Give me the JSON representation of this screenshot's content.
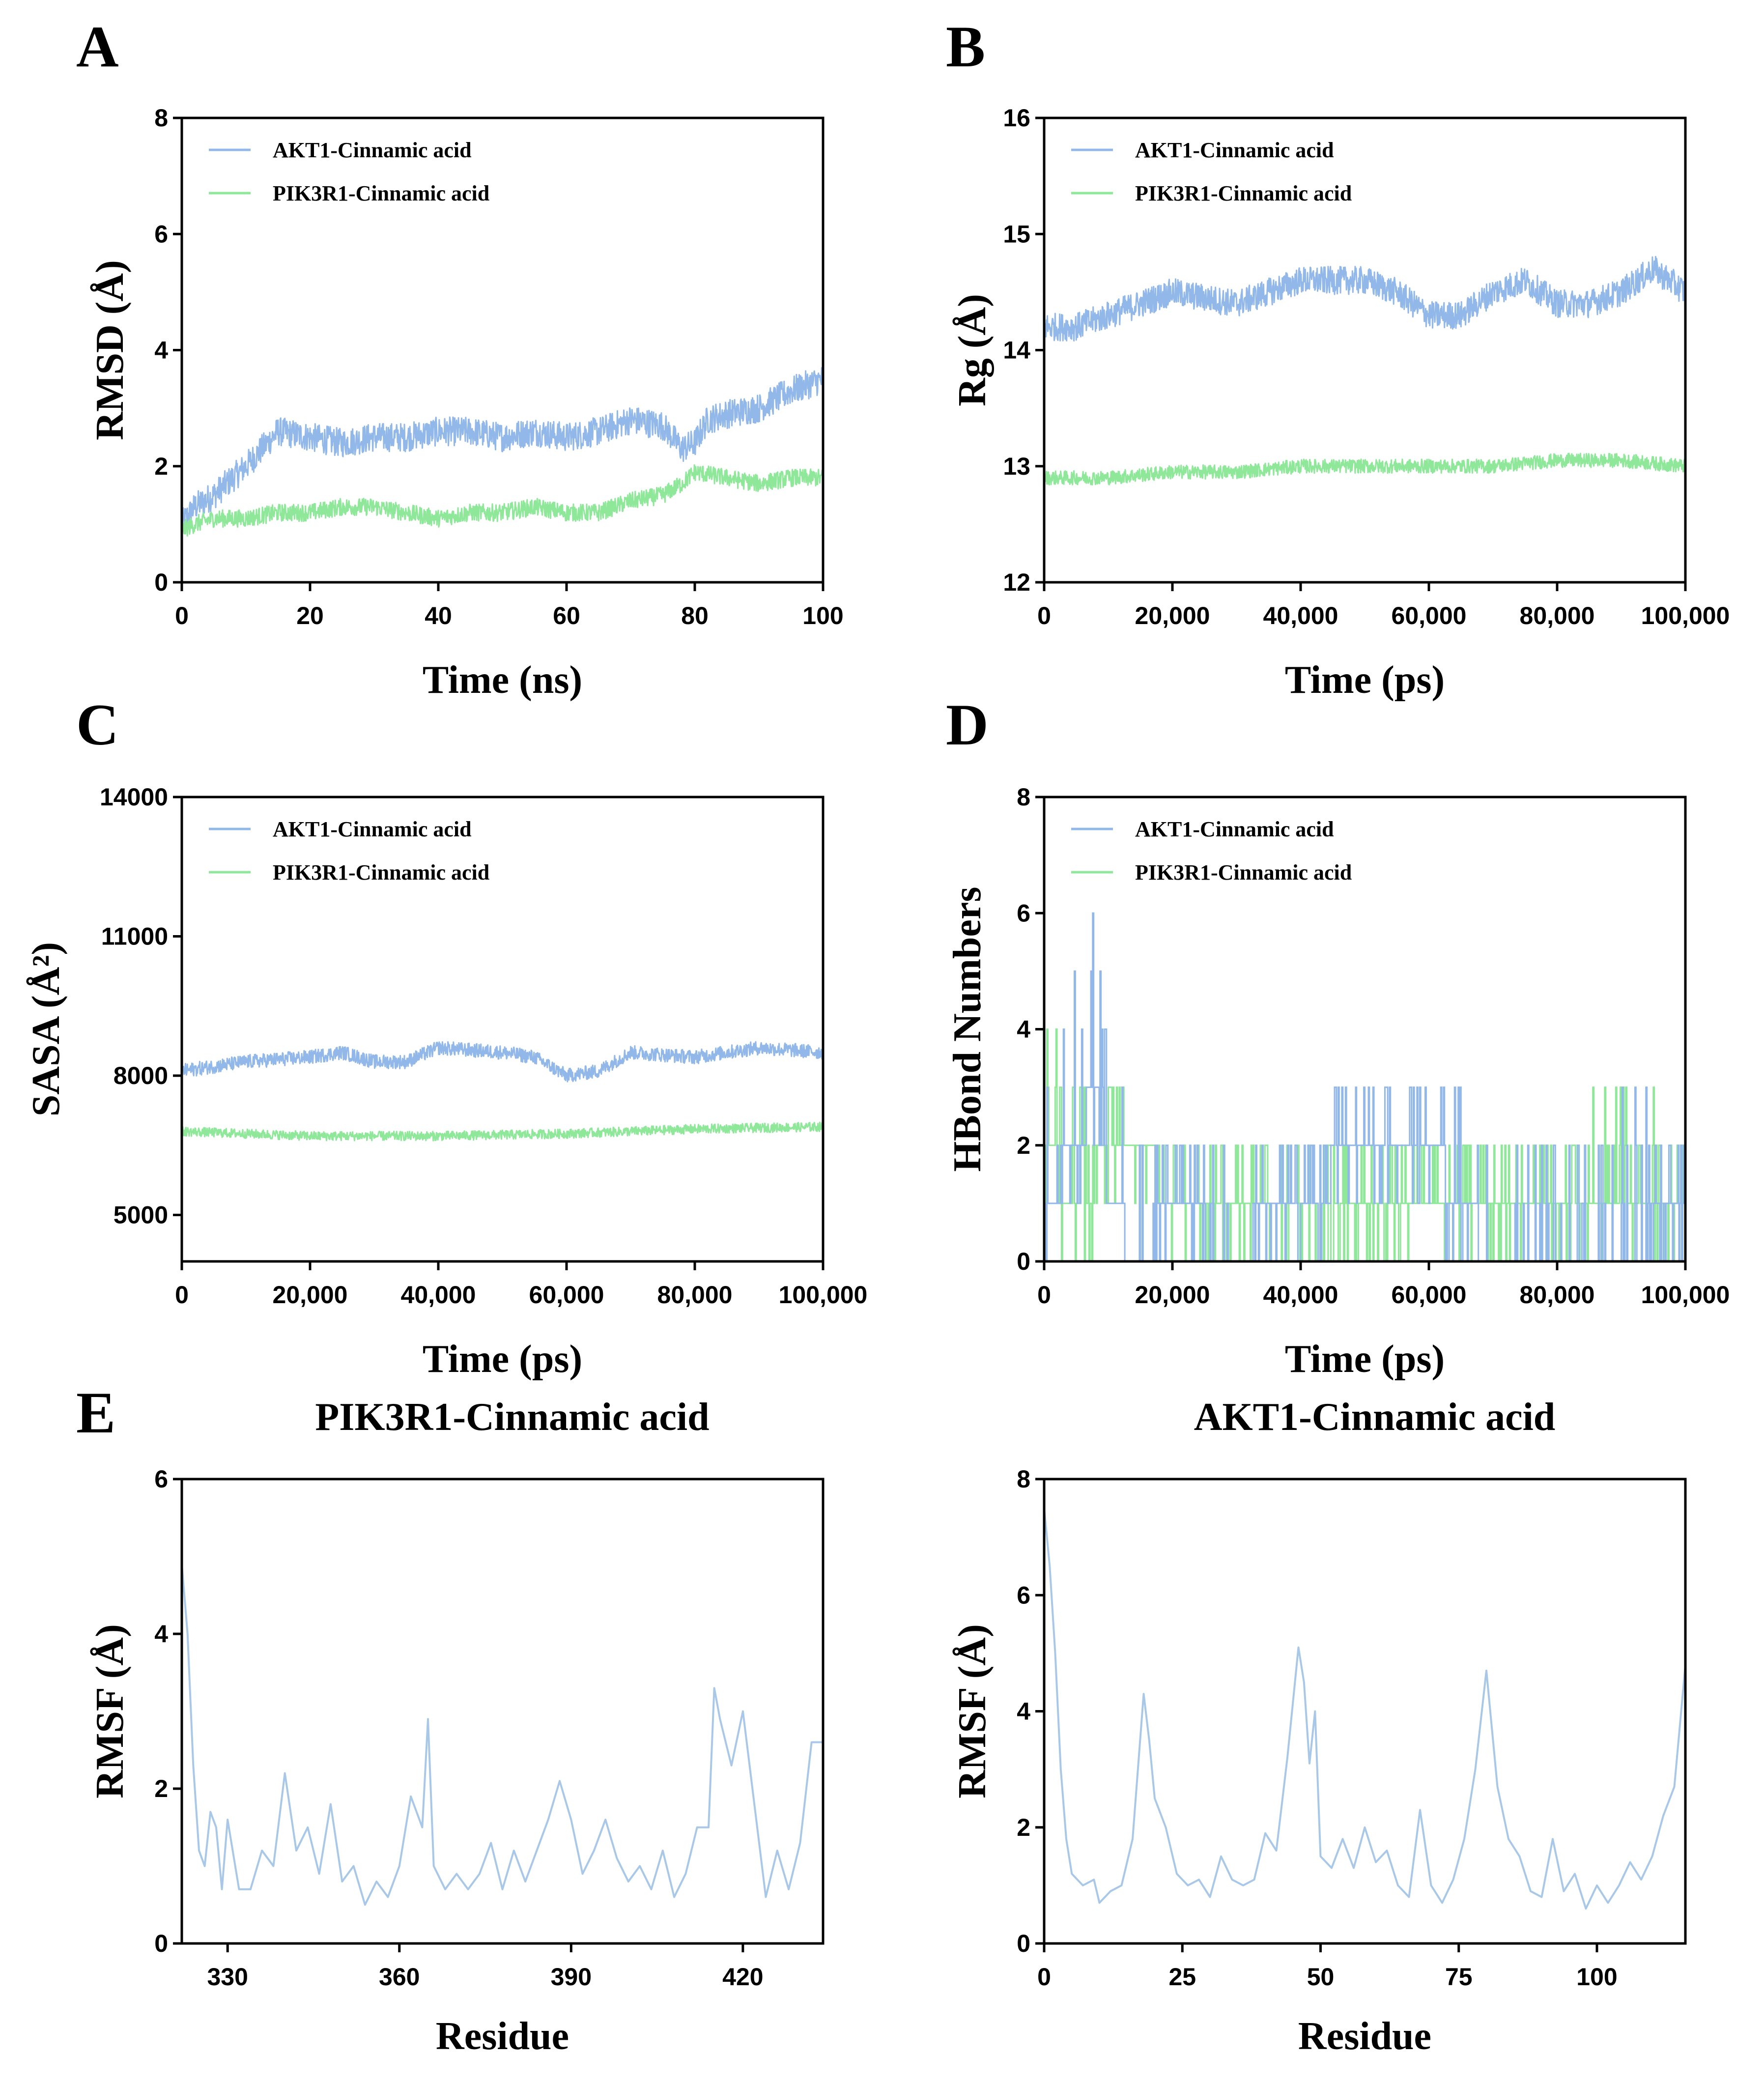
{
  "figure": {
    "colors": {
      "akt1": "#92b8ea",
      "pik3r1": "#8fe89a",
      "rmsf": "#a9c8e8"
    }
  },
  "chart_data": [
    {
      "id": "A",
      "panel_label": "A",
      "type": "line",
      "title": "",
      "xlabel": "Time (ns)",
      "ylabel": "RMSD (Å)",
      "xlim": [
        0,
        100
      ],
      "ylim": [
        0,
        8
      ],
      "xticks": [
        0,
        20,
        40,
        60,
        80,
        100
      ],
      "xtick_labels": [
        "0",
        "20",
        "40",
        "60",
        "80",
        "100"
      ],
      "yticks": [
        0,
        2,
        4,
        6,
        8
      ],
      "ytick_labels": [
        "0",
        "2",
        "4",
        "6",
        "8"
      ],
      "legend": [
        "AKT1-Cinnamic acid",
        "PIK3R1-Cinnamic acid"
      ],
      "legend_position": "top-left",
      "series": [
        {
          "name": "AKT1-Cinnamic acid",
          "color": "#92b8ea",
          "noise": 0.25,
          "x": [
            0,
            2,
            5,
            10,
            15,
            20,
            25,
            30,
            35,
            40,
            45,
            50,
            55,
            60,
            65,
            70,
            75,
            78,
            80,
            82,
            85,
            90,
            95,
            100
          ],
          "values": [
            1.0,
            1.3,
            1.5,
            2.0,
            2.6,
            2.5,
            2.4,
            2.5,
            2.5,
            2.6,
            2.6,
            2.5,
            2.6,
            2.5,
            2.6,
            2.8,
            2.7,
            2.3,
            2.4,
            2.8,
            2.9,
            3.0,
            3.3,
            3.5
          ]
        },
        {
          "name": "PIK3R1-Cinnamic acid",
          "color": "#8fe89a",
          "noise": 0.15,
          "x": [
            0,
            2,
            5,
            10,
            15,
            20,
            25,
            30,
            35,
            40,
            45,
            50,
            55,
            60,
            65,
            70,
            75,
            78,
            80,
            85,
            90,
            95,
            100
          ],
          "values": [
            0.9,
            1.0,
            1.1,
            1.1,
            1.2,
            1.2,
            1.3,
            1.3,
            1.2,
            1.1,
            1.2,
            1.2,
            1.3,
            1.2,
            1.2,
            1.4,
            1.5,
            1.7,
            1.9,
            1.8,
            1.7,
            1.8,
            1.8
          ]
        }
      ]
    },
    {
      "id": "B",
      "panel_label": "B",
      "type": "line",
      "title": "",
      "xlabel": "Time (ps)",
      "ylabel": "Rg (Å)",
      "xlim": [
        0,
        100000
      ],
      "ylim": [
        12,
        16
      ],
      "xticks": [
        0,
        20000,
        40000,
        60000,
        80000,
        100000
      ],
      "xtick_labels": [
        "0",
        "20,000",
        "40,000",
        "60,000",
        "80,000",
        "100,000"
      ],
      "yticks": [
        12,
        13,
        14,
        15,
        16
      ],
      "ytick_labels": [
        "12",
        "13",
        "14",
        "15",
        "16"
      ],
      "legend": [
        "AKT1-Cinnamic acid",
        "PIK3R1-Cinnamic acid"
      ],
      "legend_position": "top-left",
      "series": [
        {
          "name": "AKT1-Cinnamic acid",
          "color": "#92b8ea",
          "noise": 0.12,
          "x": [
            0,
            5000,
            10000,
            20000,
            30000,
            40000,
            50000,
            55000,
            60000,
            65000,
            70000,
            75000,
            80000,
            85000,
            90000,
            95000,
            100000
          ],
          "values": [
            14.2,
            14.2,
            14.3,
            14.5,
            14.4,
            14.6,
            14.6,
            14.5,
            14.3,
            14.3,
            14.5,
            14.6,
            14.4,
            14.4,
            14.5,
            14.7,
            14.5
          ]
        },
        {
          "name": "PIK3R1-Cinnamic acid",
          "color": "#8fe89a",
          "noise": 0.06,
          "x": [
            0,
            10000,
            20000,
            30000,
            40000,
            50000,
            60000,
            70000,
            80000,
            90000,
            100000
          ],
          "values": [
            12.9,
            12.9,
            12.95,
            12.95,
            13.0,
            13.0,
            13.0,
            13.0,
            13.05,
            13.05,
            13.0
          ]
        }
      ]
    },
    {
      "id": "C",
      "panel_label": "C",
      "type": "line",
      "title": "",
      "xlabel": "Time (ps)",
      "ylabel": "SASA (Å²)",
      "xlim": [
        0,
        100000
      ],
      "ylim": [
        4000,
        14000
      ],
      "xticks": [
        0,
        20000,
        40000,
        60000,
        80000,
        100000
      ],
      "xtick_labels": [
        "0",
        "20,000",
        "40,000",
        "60,000",
        "80,000",
        "100,000"
      ],
      "yticks": [
        5000,
        8000,
        11000,
        14000
      ],
      "ytick_labels": [
        "5000",
        "8000",
        "11000",
        "14000"
      ],
      "legend": [
        "AKT1-Cinnamic acid",
        "PIK3R1-Cinnamic acid"
      ],
      "legend_position": "top-left",
      "series": [
        {
          "name": "AKT1-Cinnamic acid",
          "color": "#92b8ea",
          "noise": 150,
          "x": [
            0,
            10000,
            20000,
            25000,
            30000,
            35000,
            40000,
            50000,
            55000,
            60000,
            65000,
            70000,
            80000,
            90000,
            100000
          ],
          "values": [
            8100,
            8300,
            8400,
            8500,
            8300,
            8300,
            8600,
            8500,
            8400,
            8000,
            8100,
            8500,
            8400,
            8600,
            8500
          ]
        },
        {
          "name": "PIK3R1-Cinnamic acid",
          "color": "#8fe89a",
          "noise": 100,
          "x": [
            0,
            20000,
            40000,
            60000,
            80000,
            100000
          ],
          "values": [
            6800,
            6700,
            6700,
            6750,
            6850,
            6900
          ]
        }
      ]
    },
    {
      "id": "D",
      "panel_label": "D",
      "type": "step",
      "title": "",
      "xlabel": "Time (ps)",
      "ylabel": "HBond Numbers",
      "xlim": [
        0,
        100000
      ],
      "ylim": [
        0,
        8
      ],
      "xticks": [
        0,
        20000,
        40000,
        60000,
        80000,
        100000
      ],
      "xtick_labels": [
        "0",
        "20,000",
        "40,000",
        "60,000",
        "80,000",
        "100,000"
      ],
      "yticks": [
        0,
        2,
        4,
        6,
        8
      ],
      "ytick_labels": [
        "0",
        "2",
        "4",
        "6",
        "8"
      ],
      "legend": [
        "AKT1-Cinnamic acid",
        "PIK3R1-Cinnamic acid"
      ],
      "legend_position": "top-left",
      "series": [
        {
          "name": "PIK3R1-Cinnamic acid",
          "color": "#8fe89a",
          "x": [
            0,
            5000,
            10000,
            15000,
            20000,
            30000,
            40000,
            50000,
            60000,
            70000,
            80000,
            90000,
            100000
          ],
          "values": [
            2,
            1,
            2,
            2,
            1,
            1,
            0,
            1,
            1,
            1,
            1,
            1,
            1
          ],
          "max": [
            5,
            3,
            3,
            2,
            2,
            2,
            2,
            2,
            2,
            2,
            2,
            3,
            2
          ]
        },
        {
          "name": "AKT1-Cinnamic acid",
          "color": "#92b8ea",
          "x": [
            0,
            5000,
            8000,
            10000,
            15000,
            20000,
            30000,
            35000,
            40000,
            50000,
            60000,
            65000,
            70000,
            80000,
            90000,
            100000
          ],
          "values": [
            1,
            2,
            3,
            1,
            0,
            1,
            0,
            1,
            1,
            2,
            2,
            1,
            0,
            0,
            0,
            1
          ],
          "max": [
            4,
            5,
            6,
            3,
            2,
            2,
            2,
            2,
            2,
            3,
            3,
            4,
            2,
            2,
            3,
            2
          ]
        }
      ]
    },
    {
      "id": "E1",
      "panel_label": "E",
      "type": "line",
      "title": "PIK3R1-Cinnamic acid",
      "xlabel": "Residue",
      "ylabel": "RMSF (Å)",
      "xlim": [
        322,
        434
      ],
      "ylim": [
        0,
        6
      ],
      "xticks": [
        330,
        360,
        390,
        420
      ],
      "xtick_labels": [
        "330",
        "360",
        "390",
        "420"
      ],
      "yticks": [
        0,
        2,
        4,
        6
      ],
      "ytick_labels": [
        "0",
        "2",
        "4",
        "6"
      ],
      "legend": [],
      "series": [
        {
          "name": "PIK3R1-Cinnamic acid",
          "color": "#a9c8e8",
          "x": [
            322,
            323,
            324,
            325,
            326,
            327,
            328,
            329,
            330,
            332,
            334,
            336,
            338,
            340,
            342,
            344,
            346,
            348,
            350,
            352,
            354,
            356,
            358,
            360,
            362,
            364,
            365,
            366,
            368,
            370,
            372,
            374,
            376,
            378,
            380,
            382,
            384,
            386,
            388,
            390,
            392,
            394,
            396,
            398,
            400,
            402,
            404,
            406,
            408,
            410,
            412,
            414,
            415,
            416,
            418,
            420,
            422,
            424,
            426,
            428,
            430,
            432,
            434
          ],
          "values": [
            4.9,
            4.0,
            2.3,
            1.2,
            1.0,
            1.7,
            1.5,
            0.7,
            1.6,
            0.7,
            0.7,
            1.2,
            1.0,
            2.2,
            1.2,
            1.5,
            0.9,
            1.8,
            0.8,
            1.0,
            0.5,
            0.8,
            0.6,
            1.0,
            1.9,
            1.5,
            2.9,
            1.0,
            0.7,
            0.9,
            0.7,
            0.9,
            1.3,
            0.7,
            1.2,
            0.8,
            1.2,
            1.6,
            2.1,
            1.6,
            0.9,
            1.2,
            1.6,
            1.1,
            0.8,
            1.0,
            0.7,
            1.2,
            0.6,
            0.9,
            1.5,
            1.5,
            3.3,
            2.9,
            2.3,
            3.0,
            1.8,
            0.6,
            1.2,
            0.7,
            1.3,
            2.6,
            2.6
          ]
        }
      ]
    },
    {
      "id": "E2",
      "panel_label": "",
      "type": "line",
      "title": "AKT1-Cinnamic acid",
      "xlabel": "Residue",
      "ylabel": "RMSF (Å)",
      "xlim": [
        0,
        116
      ],
      "ylim": [
        0,
        8
      ],
      "xticks": [
        0,
        25,
        50,
        75,
        100
      ],
      "xtick_labels": [
        "0",
        "25",
        "50",
        "75",
        "100"
      ],
      "yticks": [
        0,
        2,
        4,
        6,
        8
      ],
      "ytick_labels": [
        "0",
        "2",
        "4",
        "6",
        "8"
      ],
      "legend": [],
      "series": [
        {
          "name": "AKT1-Cinnamic acid",
          "color": "#a9c8e8",
          "x": [
            0,
            1,
            2,
            3,
            4,
            5,
            7,
            9,
            10,
            12,
            14,
            16,
            18,
            19,
            20,
            22,
            24,
            26,
            28,
            30,
            32,
            34,
            36,
            38,
            40,
            42,
            44,
            46,
            47,
            48,
            49,
            50,
            52,
            54,
            56,
            58,
            60,
            62,
            64,
            66,
            68,
            70,
            72,
            74,
            76,
            78,
            80,
            82,
            84,
            86,
            88,
            90,
            92,
            94,
            96,
            98,
            100,
            102,
            104,
            106,
            108,
            110,
            112,
            114,
            116
          ],
          "values": [
            7.5,
            6.5,
            5.0,
            3.0,
            1.8,
            1.2,
            1.0,
            1.1,
            0.7,
            0.9,
            1.0,
            1.8,
            4.3,
            3.5,
            2.5,
            2.0,
            1.2,
            1.0,
            1.1,
            0.8,
            1.5,
            1.1,
            1.0,
            1.1,
            1.9,
            1.6,
            3.2,
            5.1,
            4.5,
            3.1,
            4.0,
            1.5,
            1.3,
            1.8,
            1.3,
            2.0,
            1.4,
            1.6,
            1.0,
            0.8,
            2.3,
            1.0,
            0.7,
            1.1,
            1.8,
            3.0,
            4.7,
            2.7,
            1.8,
            1.5,
            0.9,
            0.8,
            1.8,
            0.9,
            1.2,
            0.6,
            1.0,
            0.7,
            1.0,
            1.4,
            1.1,
            1.5,
            2.2,
            2.7,
            4.8
          ]
        }
      ]
    }
  ]
}
